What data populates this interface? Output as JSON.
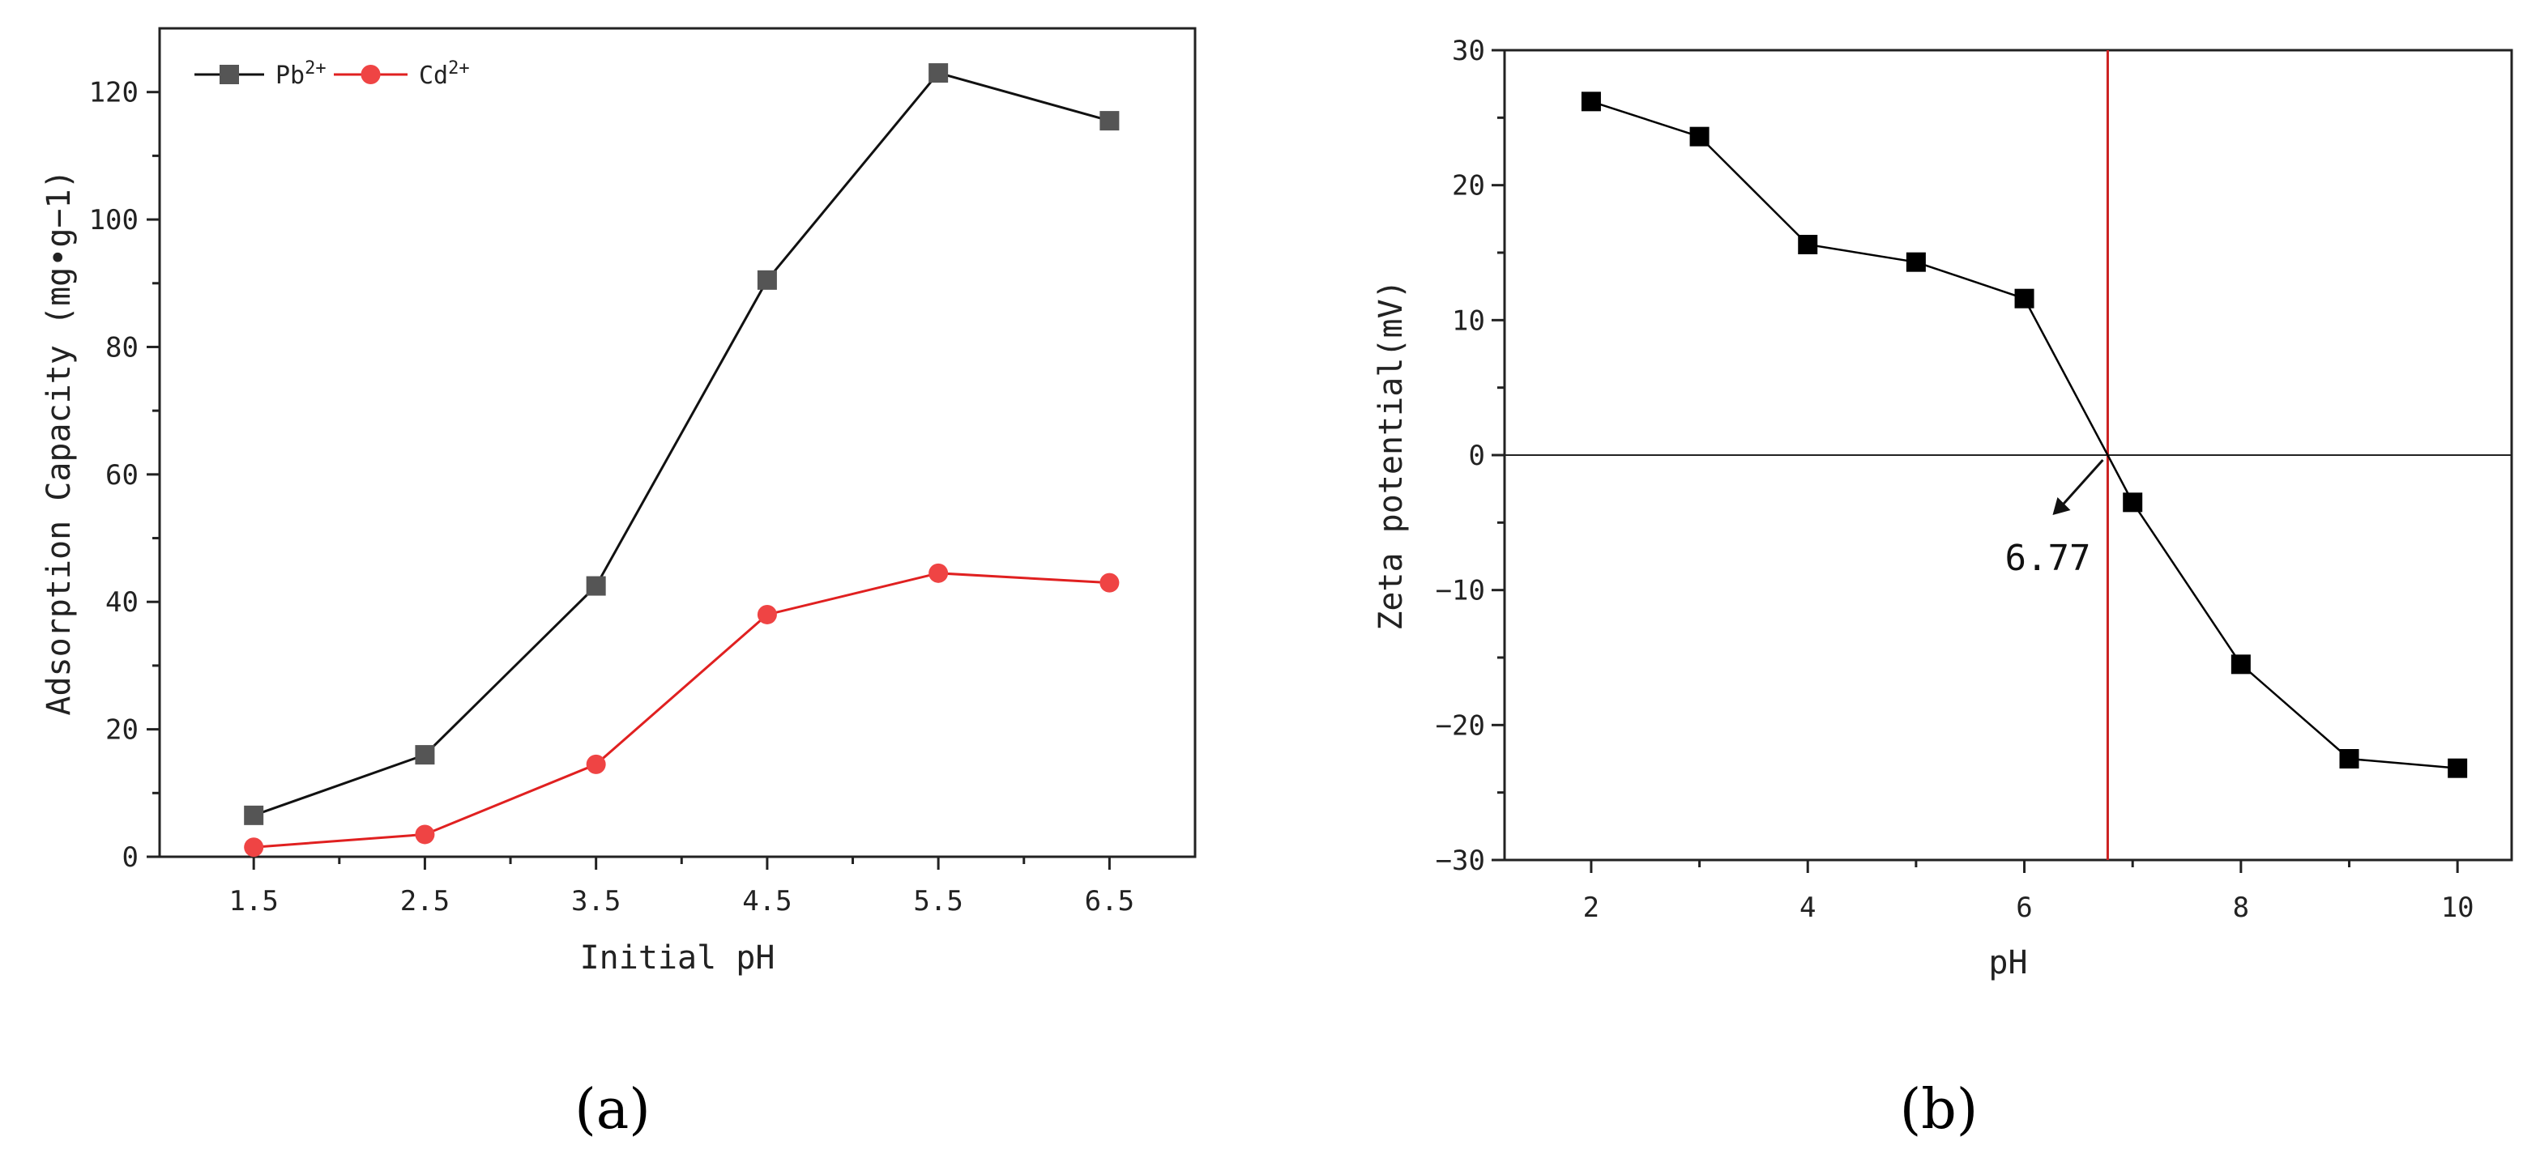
{
  "chart_data": [
    {
      "panel": "(a)",
      "type": "line",
      "xlabel": "Initial pH",
      "ylabel": "Adsorption Capacity (mg•g−1)",
      "categories": [
        "1.5",
        "2.5",
        "3.5",
        "4.5",
        "5.5",
        "6.5"
      ],
      "x": [
        1.5,
        2.5,
        3.5,
        4.5,
        5.5,
        6.5
      ],
      "xlim": [
        0.95,
        7.0
      ],
      "ylim": [
        0,
        130
      ],
      "yticks": [
        "0",
        "20",
        "40",
        "60",
        "80",
        "100",
        "120"
      ],
      "legend_position": "top-left",
      "series": [
        {
          "name": "Pb",
          "superscript": "2+",
          "marker": "square",
          "color": "#111111",
          "marker_color": "#555555",
          "values": [
            6.5,
            16,
            42.5,
            90.5,
            123,
            115.5
          ]
        },
        {
          "name": "Cd",
          "superscript": "2+",
          "marker": "circle",
          "color": "#e02020",
          "marker_color": "#ef4444",
          "values": [
            1.5,
            3.5,
            14.5,
            38,
            44.5,
            43
          ]
        }
      ]
    },
    {
      "panel": "(b)",
      "type": "scatter",
      "xlabel": "pH",
      "ylabel": "Zeta potential(mV)",
      "xlim": [
        1.2,
        10.5
      ],
      "ylim": [
        -30,
        30
      ],
      "xticks": [
        "2",
        "4",
        "6",
        "8",
        "10"
      ],
      "yticks": [
        "30",
        "20",
        "10",
        "0",
        "−10",
        "−20",
        "−30"
      ],
      "annotation": "6.77",
      "zero_line": 0,
      "isoelectric_point": 6.77,
      "series": [
        {
          "name": "",
          "marker": "square",
          "color": "#000000",
          "x": [
            2,
            3,
            4,
            5,
            6,
            7,
            8,
            9,
            10
          ],
          "values": [
            26.2,
            23.6,
            15.6,
            14.3,
            11.6,
            -3.5,
            -15.5,
            -22.5,
            -23.2
          ]
        }
      ],
      "vline_color": "#cc2222"
    }
  ],
  "labels": {
    "panel_a": "(a)",
    "panel_b": "(b)"
  }
}
